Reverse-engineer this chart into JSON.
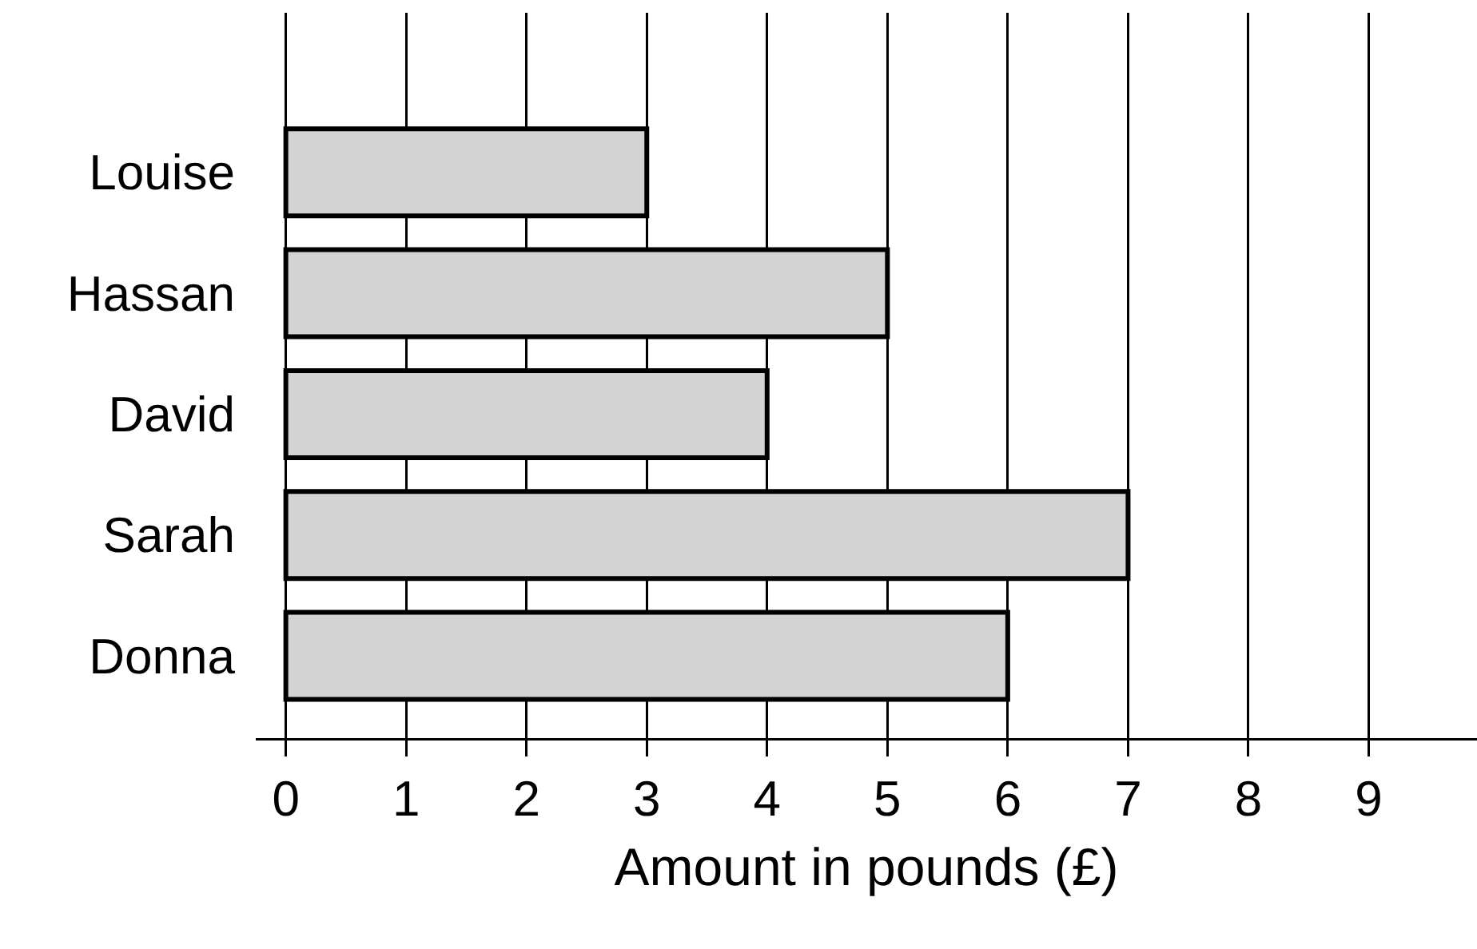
{
  "chart_data": {
    "type": "bar",
    "orientation": "horizontal",
    "xlabel": "Amount in pounds (£)",
    "categories": [
      "Louise",
      "Hassan",
      "David",
      "Sarah",
      "Donna"
    ],
    "values": [
      3,
      5,
      4,
      7,
      6
    ],
    "color": "#d3d3d3",
    "xlim": [
      -0.25,
      9.9
    ],
    "xticks": [
      0,
      1,
      2,
      3,
      4,
      5,
      6,
      7,
      8,
      9
    ],
    "grid": "x"
  }
}
